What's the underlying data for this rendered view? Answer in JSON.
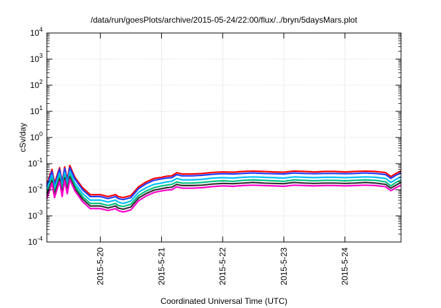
{
  "chart_data": {
    "type": "line",
    "title": "/data/run/goesPlots/archive/2015-05-24/22:00/flux/../bryn/5daysMars.plot",
    "xlabel": "Coordinated Universal Time (UTC)",
    "ylabel": "cSv/day",
    "yscale": "log",
    "grid": true,
    "legend": "none",
    "xlim": [
      "2015-05-19T03:00",
      "2015-05-24T22:00"
    ],
    "ylim": [
      0.0001,
      10000
    ],
    "x_ticks": [
      {
        "value": "2015-05-20T00:00",
        "label": "2015-5-20"
      },
      {
        "value": "2015-05-21T00:00",
        "label": "2015-5-21"
      },
      {
        "value": "2015-05-22T00:00",
        "label": "2015-5-22"
      },
      {
        "value": "2015-05-23T00:00",
        "label": "2015-5-23"
      },
      {
        "value": "2015-05-24T00:00",
        "label": "2015-5-24"
      }
    ],
    "y_ticks": [
      {
        "value": 0.0001,
        "base": "10",
        "exp": "-4"
      },
      {
        "value": 0.001,
        "base": "10",
        "exp": "-3"
      },
      {
        "value": 0.01,
        "base": "10",
        "exp": "-2"
      },
      {
        "value": 0.1,
        "base": "10",
        "exp": "-1"
      },
      {
        "value": 1,
        "base": "10",
        "exp": "0"
      },
      {
        "value": 10,
        "base": "10",
        "exp": "1"
      },
      {
        "value": 100,
        "base": "10",
        "exp": "2"
      },
      {
        "value": 1000,
        "base": "10",
        "exp": "3"
      },
      {
        "value": 10000,
        "base": "10",
        "exp": "4"
      }
    ],
    "x": [
      "2015-05-19T03:00",
      "2015-05-19T05:00",
      "2015-05-19T06:00",
      "2015-05-19T08:00",
      "2015-05-19T09:00",
      "2015-05-19T10:00",
      "2015-05-19T11:00",
      "2015-05-19T12:00",
      "2015-05-19T14:00",
      "2015-05-19T17:00",
      "2015-05-19T20:00",
      "2015-05-20T00:00",
      "2015-05-20T03:00",
      "2015-05-20T06:00",
      "2015-05-20T07:00",
      "2015-05-20T09:00",
      "2015-05-20T12:00",
      "2015-05-20T15:00",
      "2015-05-20T18:00",
      "2015-05-20T21:00",
      "2015-05-21T00:00",
      "2015-05-21T02:00",
      "2015-05-21T04:00",
      "2015-05-21T06:00",
      "2015-05-21T08:00",
      "2015-05-21T12:00",
      "2015-05-21T16:00",
      "2015-05-21T20:00",
      "2015-05-22T00:00",
      "2015-05-22T04:00",
      "2015-05-22T08:00",
      "2015-05-22T12:00",
      "2015-05-22T16:00",
      "2015-05-22T20:00",
      "2015-05-23T00:00",
      "2015-05-23T04:00",
      "2015-05-23T08:00",
      "2015-05-23T12:00",
      "2015-05-23T16:00",
      "2015-05-23T20:00",
      "2015-05-24T00:00",
      "2015-05-24T04:00",
      "2015-05-24T08:00",
      "2015-05-24T12:00",
      "2015-05-24T16:00",
      "2015-05-24T18:00",
      "2015-05-24T20:00",
      "2015-05-24T22:00"
    ],
    "series": [
      {
        "color": "#ff0000",
        "values": [
          0.016,
          0.06,
          0.018,
          0.07,
          0.02,
          0.075,
          0.025,
          0.085,
          0.03,
          0.012,
          0.0065,
          0.0065,
          0.0055,
          0.0065,
          0.0055,
          0.005,
          0.006,
          0.013,
          0.02,
          0.027,
          0.03,
          0.033,
          0.034,
          0.045,
          0.04,
          0.04,
          0.042,
          0.046,
          0.048,
          0.047,
          0.05,
          0.052,
          0.05,
          0.048,
          0.047,
          0.052,
          0.05,
          0.048,
          0.05,
          0.05,
          0.048,
          0.05,
          0.052,
          0.05,
          0.045,
          0.032,
          0.042,
          0.052
        ]
      },
      {
        "color": "#1e3cff",
        "values": [
          0.013,
          0.05,
          0.015,
          0.06,
          0.017,
          0.065,
          0.02,
          0.07,
          0.026,
          0.01,
          0.0055,
          0.0055,
          0.0046,
          0.0055,
          0.0046,
          0.0042,
          0.005,
          0.011,
          0.017,
          0.023,
          0.026,
          0.028,
          0.029,
          0.038,
          0.034,
          0.034,
          0.036,
          0.039,
          0.041,
          0.04,
          0.042,
          0.044,
          0.042,
          0.041,
          0.04,
          0.044,
          0.042,
          0.041,
          0.042,
          0.042,
          0.041,
          0.042,
          0.044,
          0.042,
          0.038,
          0.027,
          0.036,
          0.044
        ]
      },
      {
        "color": "#00bfff",
        "values": [
          0.01,
          0.036,
          0.011,
          0.043,
          0.012,
          0.046,
          0.015,
          0.05,
          0.018,
          0.0072,
          0.004,
          0.004,
          0.0034,
          0.004,
          0.0034,
          0.003,
          0.0037,
          0.008,
          0.012,
          0.016,
          0.018,
          0.02,
          0.021,
          0.027,
          0.024,
          0.024,
          0.025,
          0.028,
          0.029,
          0.028,
          0.03,
          0.031,
          0.03,
          0.029,
          0.028,
          0.031,
          0.03,
          0.029,
          0.03,
          0.03,
          0.029,
          0.03,
          0.031,
          0.03,
          0.027,
          0.019,
          0.025,
          0.031
        ]
      },
      {
        "color": "#00c080",
        "values": [
          0.0075,
          0.027,
          0.0083,
          0.032,
          0.009,
          0.034,
          0.011,
          0.038,
          0.014,
          0.0055,
          0.003,
          0.003,
          0.0025,
          0.003,
          0.0025,
          0.0023,
          0.0028,
          0.006,
          0.009,
          0.012,
          0.014,
          0.015,
          0.016,
          0.02,
          0.018,
          0.018,
          0.019,
          0.021,
          0.022,
          0.021,
          0.023,
          0.024,
          0.023,
          0.022,
          0.021,
          0.024,
          0.023,
          0.022,
          0.023,
          0.023,
          0.022,
          0.023,
          0.024,
          0.023,
          0.02,
          0.014,
          0.019,
          0.024
        ]
      },
      {
        "color": "#303030",
        "values": [
          0.006,
          0.022,
          0.0066,
          0.026,
          0.0072,
          0.028,
          0.009,
          0.031,
          0.011,
          0.0044,
          0.0024,
          0.0024,
          0.002,
          0.0024,
          0.002,
          0.0018,
          0.0022,
          0.0048,
          0.0072,
          0.0096,
          0.011,
          0.012,
          0.0125,
          0.016,
          0.0145,
          0.0145,
          0.015,
          0.0165,
          0.0175,
          0.017,
          0.018,
          0.019,
          0.018,
          0.0175,
          0.017,
          0.019,
          0.018,
          0.0175,
          0.018,
          0.018,
          0.0175,
          0.018,
          0.019,
          0.018,
          0.016,
          0.0115,
          0.015,
          0.019
        ]
      },
      {
        "color": "#ff00cc",
        "values": [
          0.0045,
          0.018,
          0.005,
          0.021,
          0.0055,
          0.023,
          0.007,
          0.025,
          0.009,
          0.0035,
          0.0019,
          0.0019,
          0.0016,
          0.0019,
          0.0016,
          0.0014,
          0.0017,
          0.0038,
          0.0058,
          0.0078,
          0.009,
          0.0097,
          0.01,
          0.013,
          0.0115,
          0.0115,
          0.012,
          0.0132,
          0.014,
          0.0135,
          0.0145,
          0.015,
          0.0145,
          0.014,
          0.0135,
          0.015,
          0.0145,
          0.014,
          0.0145,
          0.0145,
          0.014,
          0.0145,
          0.015,
          0.0145,
          0.013,
          0.0092,
          0.012,
          0.015
        ]
      }
    ]
  }
}
